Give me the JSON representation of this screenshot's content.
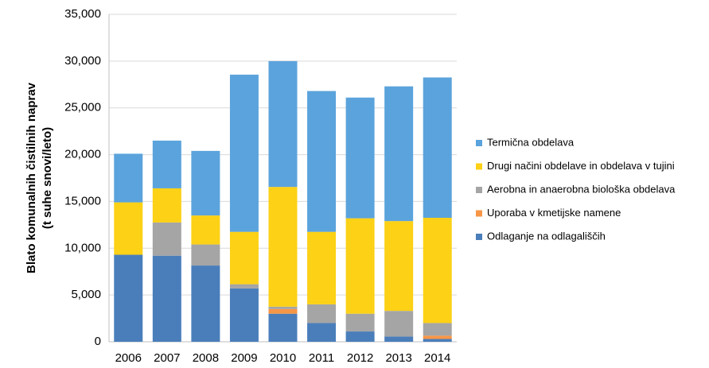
{
  "chart_data": {
    "type": "stacked_bar",
    "ylabel": [
      "Blato komunalnih čistilnih naprav",
      "(t suhe snovi/leto)"
    ],
    "categories": [
      "2006",
      "2007",
      "2008",
      "2009",
      "2010",
      "2011",
      "2012",
      "2013",
      "2014"
    ],
    "series": [
      {
        "name": "Odlaganje na odlagališčih",
        "color": "#4a7ebb",
        "values": [
          9300,
          9200,
          8150,
          5700,
          3000,
          2000,
          1100,
          550,
          300
        ]
      },
      {
        "name": "Uporaba v kmetijske namene",
        "color": "#f79646",
        "values": [
          0,
          0,
          0,
          0,
          500,
          0,
          0,
          0,
          350
        ]
      },
      {
        "name": "Aerobna in anaerobna biološka obdelava",
        "color": "#a5a5a5",
        "values": [
          0,
          3550,
          2250,
          450,
          250,
          2000,
          1900,
          2750,
          1350
        ]
      },
      {
        "name": "Drugi načini obdelave in obdelava v tujini",
        "color": "#fcd116",
        "values": [
          5600,
          3650,
          3100,
          5600,
          12800,
          7750,
          10200,
          9600,
          11250
        ]
      },
      {
        "name": "Termična obdelava",
        "color": "#5ba3dc",
        "values": [
          5200,
          5100,
          6900,
          16800,
          13450,
          15050,
          12900,
          14400,
          15000
        ]
      }
    ],
    "ylim": [
      0,
      35000
    ],
    "yticks": [
      0,
      {
        "value": 5000,
        "label": "5,000"
      },
      {
        "value": 10000,
        "label": "10,000"
      },
      {
        "value": 15000,
        "label": "15,000"
      },
      {
        "value": 20000,
        "label": "20,000"
      },
      {
        "value": 25000,
        "label": "25,000"
      },
      {
        "value": 30000,
        "label": "30,000"
      },
      {
        "value": 35000,
        "label": "35,000"
      }
    ],
    "grid": true,
    "legend": "right"
  }
}
